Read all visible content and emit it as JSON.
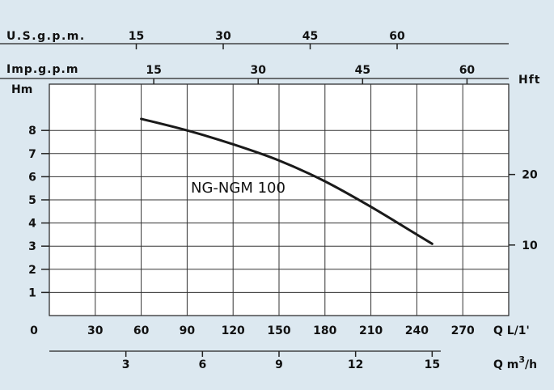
{
  "chart_data": {
    "type": "line",
    "title": "",
    "annotation": "NG-NGM 100",
    "axes": {
      "top_usgpm": {
        "label": "U.S.g.p.m.",
        "ticks": [
          "15",
          "30",
          "45",
          "60"
        ]
      },
      "top_impgpm": {
        "label": "Imp.g.p.m",
        "ticks": [
          "15",
          "30",
          "45",
          "60"
        ]
      },
      "left_hm": {
        "label": "Hm",
        "ticks": [
          "1",
          "2",
          "3",
          "4",
          "5",
          "6",
          "7",
          "8"
        ]
      },
      "right_hft": {
        "label": "Hft",
        "ticks": [
          "10",
          "20"
        ]
      },
      "bottom_lmin": {
        "origin_label": "0",
        "label": "Q L/1'",
        "ticks": [
          "30",
          "60",
          "90",
          "120",
          "150",
          "180",
          "210",
          "240",
          "270"
        ]
      },
      "bottom_m3h": {
        "label": "Q m³/h",
        "ticks": [
          "3",
          "6",
          "9",
          "12",
          "15"
        ]
      }
    },
    "xlim": [
      0,
      300
    ],
    "ylim": [
      0,
      10
    ],
    "xlabel": "Q L/1'",
    "ylabel": "Hm",
    "grid": true,
    "line_color": "#1a1a1a",
    "series": [
      {
        "name": "NG-NGM 100",
        "x": [
          60,
          90,
          120,
          150,
          180,
          210,
          240,
          250
        ],
        "y": [
          8.5,
          8.0,
          7.4,
          6.7,
          5.8,
          4.7,
          3.5,
          3.1
        ]
      }
    ]
  }
}
